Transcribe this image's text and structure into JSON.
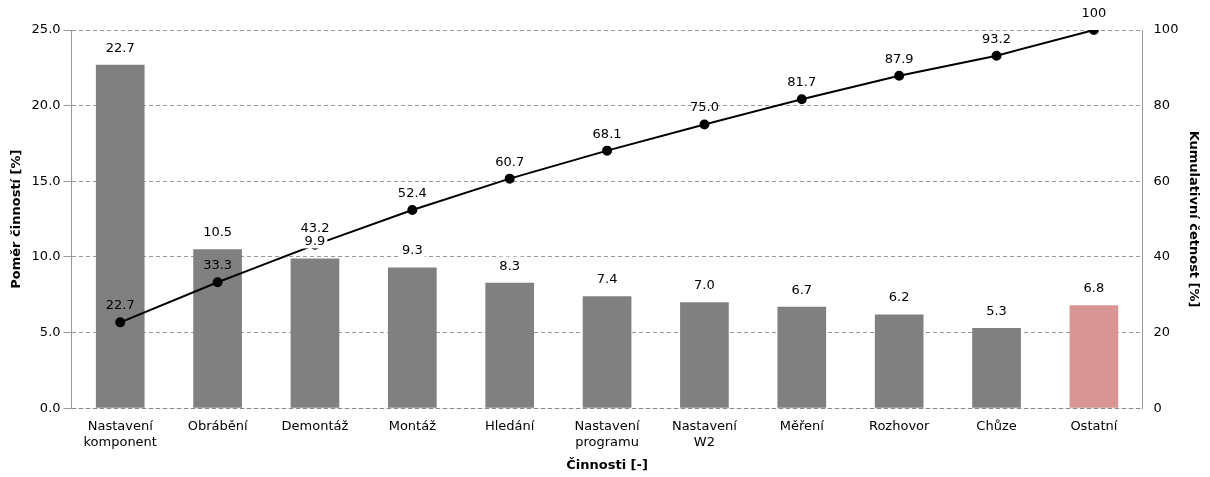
{
  "chart_data": {
    "type": "bar",
    "xlabel": "Činnosti [-]",
    "ylabel": "Poměr činností [%]",
    "y2label": "Kumulativní četnost [%]",
    "categories": [
      "Nastavení komponent",
      "Obrábění",
      "Demontáž",
      "Montáž",
      "Hledání",
      "Nastavení programu",
      "Nastavení W2",
      "Měření",
      "Rozhovor",
      "Chůze",
      "Ostatní"
    ],
    "series": [
      {
        "colors": [
          "#808080",
          "#808080",
          "#808080",
          "#808080",
          "#808080",
          "#808080",
          "#808080",
          "#808080",
          "#808080",
          "#808080",
          "#d99594"
        ],
        "values": [
          22.7,
          10.5,
          9.9,
          9.3,
          8.3,
          7.4,
          7.0,
          6.7,
          6.2,
          5.3,
          6.8
        ],
        "value_labels": [
          "22.7",
          "10.5",
          "9.9",
          "9.3",
          "8.3",
          "7.4",
          "7.0",
          "6.7",
          "6.2",
          "5.3",
          "6.8"
        ]
      },
      {
        "type": "line",
        "axis": "y2",
        "color": "#000000",
        "marker": "circle",
        "line_style": "solid",
        "values": [
          22.7,
          33.3,
          43.2,
          52.4,
          60.7,
          68.1,
          75.0,
          81.7,
          87.9,
          93.2,
          100
        ],
        "value_labels": [
          "22.7",
          "33.3",
          "43.2",
          "52.4",
          "60.7",
          "68.1",
          "75.0",
          "81.7",
          "87.9",
          "93.2",
          "100"
        ]
      }
    ],
    "ylim": [
      0,
      25
    ],
    "yticks": [
      {
        "value": 0,
        "label": "0.0"
      },
      {
        "value": 5,
        "label": "5.0"
      },
      {
        "value": 10,
        "label": "10.0"
      },
      {
        "value": 15,
        "label": "15.0"
      },
      {
        "value": 20,
        "label": "20.0"
      },
      {
        "value": 25,
        "label": "25.0"
      }
    ],
    "y2lim": [
      0,
      100
    ],
    "y2ticks": [
      0,
      20,
      40,
      60,
      80,
      100
    ],
    "grid": "y",
    "legend": false
  }
}
